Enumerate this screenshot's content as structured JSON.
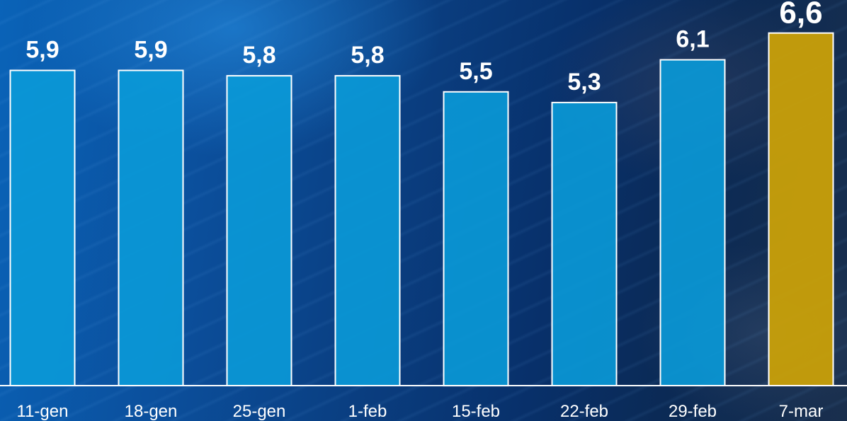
{
  "chart_data": {
    "type": "bar",
    "categories": [
      "11-gen",
      "18-gen",
      "25-gen",
      "1-feb",
      "15-feb",
      "22-feb",
      "29-feb",
      "7-mar"
    ],
    "values": [
      5.9,
      5.9,
      5.8,
      5.8,
      5.5,
      5.3,
      6.1,
      6.6
    ],
    "value_labels": [
      "5,9",
      "5,9",
      "5,8",
      "5,8",
      "5,5",
      "5,3",
      "6,1",
      "6,6"
    ],
    "highlight_index": 7,
    "title": "",
    "xlabel": "",
    "ylabel": "",
    "grid": false,
    "colors": {
      "bar": "#0a9ad8",
      "highlight": "#c9a008",
      "bar_outline": "#ffffff",
      "axis_line": "#ffffff",
      "text": "#ffffff"
    }
  }
}
